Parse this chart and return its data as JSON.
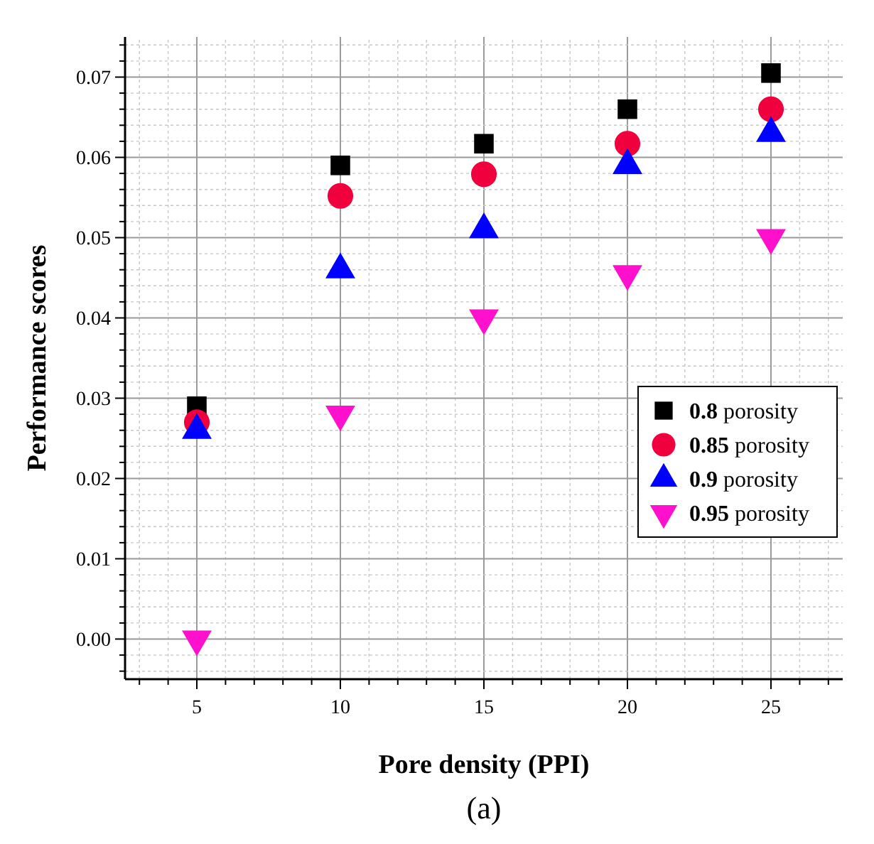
{
  "chart_data": {
    "type": "scatter",
    "xlabel": "Pore density (PPI)",
    "ylabel": "Performance scores",
    "annotations": [
      "(a)"
    ],
    "x": [
      5,
      10,
      15,
      20,
      25
    ],
    "series": [
      {
        "name": "0.8 porosity",
        "color": "#000000",
        "marker": "square",
        "values": [
          0.029,
          0.059,
          0.0617,
          0.066,
          0.0705
        ]
      },
      {
        "name": "0.85 porosity",
        "color": "#f0003c",
        "marker": "circle",
        "values": [
          0.027,
          0.0552,
          0.0579,
          0.0617,
          0.066
        ]
      },
      {
        "name": "0.9 porosity",
        "color": "#0000ff",
        "marker": "triangle",
        "values": [
          0.026,
          0.046,
          0.051,
          0.059,
          0.063
        ]
      },
      {
        "name": "0.95 porosity",
        "color": "#ff10cc",
        "marker": "triangle-down",
        "values": [
          0,
          0.028,
          0.04,
          0.0455,
          0.05
        ]
      }
    ],
    "xlim": [
      2.5,
      27.5
    ],
    "xticks": [
      {
        "value": 3,
        "label": null
      },
      {
        "value": 4,
        "label": null
      },
      5,
      {
        "value": 6,
        "label": null
      },
      {
        "value": 7,
        "label": null
      },
      {
        "value": 8,
        "label": null
      },
      {
        "value": 9,
        "label": null
      },
      10,
      {
        "value": 11,
        "label": null
      },
      {
        "value": 12,
        "label": null
      },
      {
        "value": 13,
        "label": null
      },
      {
        "value": 14,
        "label": null
      },
      15,
      {
        "value": 16,
        "label": null
      },
      {
        "value": 17,
        "label": null
      },
      {
        "value": 18,
        "label": null
      },
      {
        "value": 19,
        "label": null
      },
      20,
      {
        "value": 21,
        "label": null
      },
      {
        "value": 22,
        "label": null
      },
      {
        "value": 23,
        "label": null
      },
      {
        "value": 24,
        "label": null
      },
      25,
      {
        "value": 26,
        "label": null
      },
      {
        "value": 27,
        "label": null
      }
    ],
    "ylim": [
      -0.005,
      0.075
    ],
    "yticks": [
      {
        "value": -0.004,
        "label": null
      },
      {
        "value": -0.002,
        "label": null
      },
      {
        "value": 0,
        "label": "0.00"
      },
      {
        "value": 0.002,
        "label": null
      },
      {
        "value": 0.004,
        "label": null
      },
      {
        "value": 0.006,
        "label": null
      },
      {
        "value": 0.008,
        "label": null
      },
      {
        "value": 0.01,
        "label": "0.01"
      },
      {
        "value": 0.012,
        "label": null
      },
      {
        "value": 0.014,
        "label": null
      },
      {
        "value": 0.016,
        "label": null
      },
      {
        "value": 0.018,
        "label": null
      },
      {
        "value": 0.02,
        "label": "0.02"
      },
      {
        "value": 0.022,
        "label": null
      },
      {
        "value": 0.024,
        "label": null
      },
      {
        "value": 0.026,
        "label": null
      },
      {
        "value": 0.028,
        "label": null
      },
      {
        "value": 0.03,
        "label": "0.03"
      },
      {
        "value": 0.032,
        "label": null
      },
      {
        "value": 0.034,
        "label": null
      },
      {
        "value": 0.036,
        "label": null
      },
      {
        "value": 0.038,
        "label": null
      },
      {
        "value": 0.04,
        "label": "0.04"
      },
      {
        "value": 0.042,
        "label": null
      },
      {
        "value": 0.044,
        "label": null
      },
      {
        "value": 0.046,
        "label": null
      },
      {
        "value": 0.048,
        "label": null
      },
      {
        "value": 0.05,
        "label": "0.05"
      },
      {
        "value": 0.052,
        "label": null
      },
      {
        "value": 0.054,
        "label": null
      },
      {
        "value": 0.056,
        "label": null
      },
      {
        "value": 0.058,
        "label": null
      },
      {
        "value": 0.06,
        "label": "0.06"
      },
      {
        "value": 0.062,
        "label": null
      },
      {
        "value": 0.064,
        "label": null
      },
      {
        "value": 0.066,
        "label": null
      },
      {
        "value": 0.068,
        "label": null
      },
      {
        "value": 0.07,
        "label": "0.07"
      },
      {
        "value": 0.072,
        "label": null
      },
      {
        "value": 0.074,
        "label": null
      }
    ],
    "grid": true,
    "legend": "right"
  }
}
